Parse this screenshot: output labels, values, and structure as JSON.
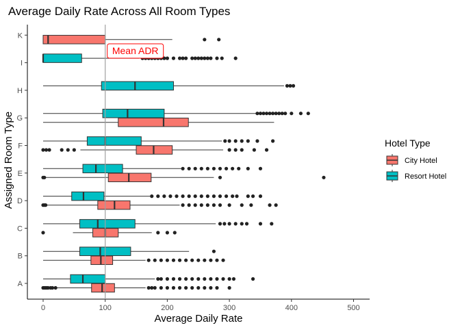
{
  "chart_data": {
    "type": "boxplot",
    "orientation": "horizontal",
    "title": "Average Daily Rate Across All Room Types",
    "xlabel": "Average Daily Rate",
    "ylabel": "Assigned Room Type",
    "xlim": [
      -12,
      525
    ],
    "xticks": [
      0,
      100,
      200,
      300,
      400,
      500
    ],
    "categories": [
      "A",
      "B",
      "C",
      "D",
      "E",
      "F",
      "G",
      "H",
      "I",
      "K"
    ],
    "grid": false,
    "legend": {
      "title": "Hotel Type",
      "position": "right",
      "entries": [
        "City Hotel",
        "Resort Hotel"
      ]
    },
    "colors": {
      "City Hotel": "#F8766D",
      "Resort Hotel": "#00BFC4"
    },
    "reference_line": {
      "x": 100,
      "label": "Mean ADR",
      "color": "#ff0000"
    },
    "series": [
      {
        "name": "City Hotel",
        "boxes": [
          {
            "category": "A",
            "whisker_low": 0,
            "q1": 78,
            "median": 95,
            "q3": 115,
            "whisker_high": 165,
            "outliers": [
              0,
              2,
              4,
              6,
              8,
              12,
              15,
              20,
              170,
              175,
              180,
              190,
              200,
              210,
              220,
              230,
              240,
              250,
              260,
              270,
              280,
              300
            ]
          },
          {
            "category": "B",
            "whisker_low": 0,
            "q1": 77,
            "median": 93,
            "q3": 112,
            "whisker_high": 165,
            "outliers": [
              170,
              180,
              190,
              200,
              210,
              220,
              230,
              240,
              250,
              260,
              270,
              280,
              290
            ]
          },
          {
            "category": "C",
            "whisker_low": 48,
            "q1": 80,
            "median": 100,
            "q3": 121,
            "whisker_high": 175,
            "outliers": [
              0,
              185,
              200,
              212
            ]
          },
          {
            "category": "D",
            "whisker_low": 0,
            "q1": 88,
            "median": 115,
            "q3": 140,
            "whisker_high": 220,
            "outliers": [
              0,
              2,
              4,
              225,
              235,
              245,
              255,
              265,
              275,
              285,
              300,
              320,
              335,
              365,
              375
            ]
          },
          {
            "category": "E",
            "whisker_low": 0,
            "q1": 105,
            "median": 138,
            "q3": 174,
            "whisker_high": 275,
            "outliers": [
              0,
              2,
              285,
              452
            ]
          },
          {
            "category": "F",
            "whisker_low": 60,
            "q1": 150,
            "median": 178,
            "q3": 208,
            "whisker_high": 290,
            "outliers": [
              0,
              5,
              10,
              30,
              40,
              50,
              300,
              310,
              320,
              340,
              360
            ]
          },
          {
            "category": "G",
            "whisker_low": 0,
            "q1": 121,
            "median": 194,
            "q3": 234,
            "whisker_high": 372,
            "outliers": []
          },
          {
            "category": "K",
            "whisker_low": 0,
            "q1": 0,
            "median": 8,
            "q3": 100,
            "whisker_high": 208,
            "outliers": [
              260,
              283
            ]
          }
        ]
      },
      {
        "name": "Resort Hotel",
        "boxes": [
          {
            "category": "A",
            "whisker_low": 0,
            "q1": 44,
            "median": 64,
            "q3": 100,
            "whisker_high": 180,
            "outliers": [
              185,
              190,
              200,
              210,
              220,
              230,
              240,
              250,
              260,
              270,
              280,
              290,
              300,
              307,
              338
            ]
          },
          {
            "category": "B",
            "whisker_low": 0,
            "q1": 59,
            "median": 92,
            "q3": 141,
            "whisker_high": 235,
            "outliers": [
              275
            ]
          },
          {
            "category": "C",
            "whisker_low": 0,
            "q1": 59,
            "median": 88,
            "q3": 148,
            "whisker_high": 278,
            "outliers": [
              285,
              292,
              300,
              310,
              320,
              328,
              350,
              368
            ]
          },
          {
            "category": "D",
            "whisker_low": 0,
            "q1": 46,
            "median": 65,
            "q3": 98,
            "whisker_high": 172,
            "outliers": [
              175,
              185,
              195,
              205,
              215,
              225,
              235,
              245,
              255,
              265,
              275,
              285,
              295,
              305,
              312,
              330,
              338,
              350
            ]
          },
          {
            "category": "E",
            "whisker_low": 0,
            "q1": 64,
            "median": 85,
            "q3": 128,
            "whisker_high": 222,
            "outliers": [
              225,
              235,
              245,
              255,
              265,
              275,
              285,
              295,
              305,
              315,
              330,
              350
            ]
          },
          {
            "category": "F",
            "whisker_low": 0,
            "q1": 71,
            "median": 100,
            "q3": 158,
            "whisker_high": 288,
            "outliers": [
              293,
              300,
              310,
              320,
              330,
              345,
              370
            ]
          },
          {
            "category": "G",
            "whisker_low": 0,
            "q1": 96,
            "median": 136,
            "q3": 195,
            "whisker_high": 343,
            "outliers": [
              345,
              350,
              355,
              360,
              365,
              370,
              375,
              380,
              385,
              390,
              400,
              415,
              427
            ]
          },
          {
            "category": "H",
            "whisker_low": 0,
            "q1": 94,
            "median": 148,
            "q3": 210,
            "whisker_high": 388,
            "outliers": [
              393,
              398,
              403
            ]
          },
          {
            "category": "I",
            "whisker_low": 0,
            "q1": 0,
            "median": 0,
            "q3": 62,
            "whisker_high": 155,
            "outliers": [
              160,
              165,
              170,
              175,
              180,
              185,
              190,
              195,
              200,
              210,
              220,
              225,
              230,
              240,
              245,
              250,
              255,
              260,
              265,
              270,
              280,
              288,
              310
            ]
          }
        ]
      }
    ]
  }
}
